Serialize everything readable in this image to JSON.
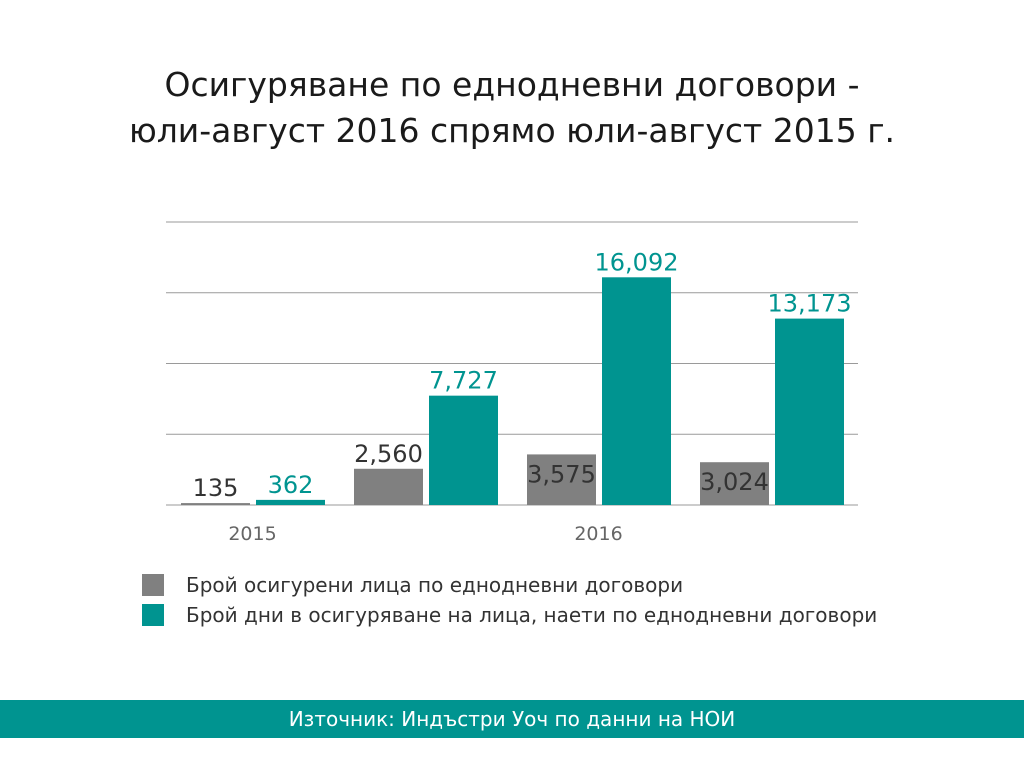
{
  "title_line1": "Осигуряване по еднодневни договори -",
  "title_line2": "юли-август 2016 спрямо юли-август 2015 г.",
  "source": "Източник: Индъстри Уоч по данни на НОИ",
  "colors": {
    "gray": "#808080",
    "teal": "#009490",
    "grid": "#9a9a9a",
    "label_dark": "#333333",
    "footer_bg": "#009490"
  },
  "chart_data": {
    "type": "bar",
    "groups": [
      {
        "label": "2015",
        "pairs": [
          {
            "gray": 135,
            "teal": 362
          }
        ]
      },
      {
        "label": "2016",
        "pairs": [
          {
            "gray": 2560,
            "teal": 7727
          },
          {
            "gray": 3575,
            "teal": 16092
          },
          {
            "gray": 3024,
            "teal": 13173
          }
        ]
      }
    ],
    "data_labels": {
      "gray": [
        "135",
        "2,560",
        "3,575",
        "3,024"
      ],
      "teal": [
        "362",
        "7,727",
        "16,092",
        "13,173"
      ]
    },
    "series": [
      {
        "name": "Брой осигурени лица по еднодневни договори",
        "color": "#808080"
      },
      {
        "name": "Брой дни в осигуряване на лица, наети по еднодневни договори",
        "color": "#009490"
      }
    ],
    "ylim": [
      0,
      20000
    ],
    "gridlines": true,
    "legend": "bottom-left"
  }
}
